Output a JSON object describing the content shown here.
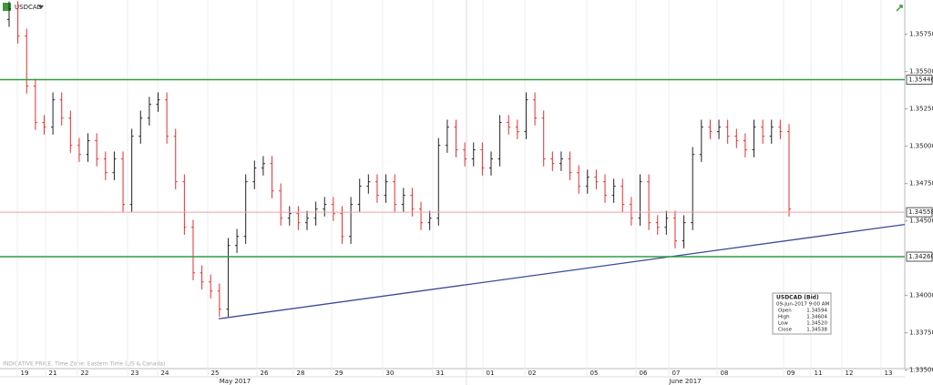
{
  "chart_data": {
    "type": "ohlc",
    "title": "USDCAD",
    "footnote": "INDICATIVE PRICE. Time Zone: Eastern Time (US & Canada)",
    "up_color": "#222222",
    "down_color": "#e03030",
    "ylim": [
      1.3351,
      1.3598
    ],
    "yticks": [
      {
        "value": 1.3575,
        "label": "1.35750"
      },
      {
        "value": 1.355,
        "label": "1.35500"
      },
      {
        "value": 1.3525,
        "label": "1.35250"
      },
      {
        "value": 1.35,
        "label": "1.35000"
      },
      {
        "value": 1.3475,
        "label": "1.34750"
      },
      {
        "value": 1.345,
        "label": "1.34500"
      },
      {
        "value": 1.34,
        "label": "1.34000"
      },
      {
        "value": 1.3375,
        "label": "1.33750"
      },
      {
        "value": 1.335,
        "label": "1.33500"
      }
    ],
    "x_tick_labels": [
      "19",
      "21",
      "22",
      "23",
      "24",
      "25",
      "26",
      "28",
      "29",
      "30",
      "31",
      "01",
      "02",
      "05",
      "06",
      "07",
      "08",
      "09",
      "11",
      "12",
      "13"
    ],
    "months": [
      "May 2017",
      "June 2017"
    ],
    "levels": [
      {
        "value": 1.35446,
        "label": "1.35446",
        "color": "#2e9e3e"
      },
      {
        "value": 1.34558,
        "label": "1.34558",
        "color": "#f0a0a0"
      },
      {
        "value": 1.3426,
        "label": "1.34260",
        "color": "#2e9e3e"
      }
    ],
    "trendline": {
      "color": "#3a4a9a",
      "values": [
        1.33844,
        1.34476
      ]
    },
    "open": [
      1.3585,
      1.35921,
      1.35738,
      1.35403,
      1.35159,
      1.35128,
      1.35311,
      1.35189,
      1.35006,
      1.34945,
      1.35037,
      1.34915,
      1.34823,
      1.34915,
      1.3461,
      1.35067,
      1.35189,
      1.35281,
      1.35311,
      1.35067,
      1.34762,
      1.34457,
      1.34152,
      1.34091,
      1.3403,
      1.33908,
      1.34335,
      1.34396,
      1.34762,
      1.34854,
      1.34884,
      1.34701,
      1.34518,
      1.34549,
      1.34488,
      1.34518,
      1.34579,
      1.3461,
      1.34549,
      1.34396,
      1.3461,
      1.34732,
      1.34762,
      1.34671,
      1.34762,
      1.3461,
      1.34671,
      1.34579,
      1.34488,
      1.34518,
      1.35006,
      1.35128,
      1.34976,
      1.34915,
      1.34976,
      1.34854,
      1.34915,
      1.35159,
      1.35128,
      1.35098,
      1.35311,
      1.35189,
      1.34915,
      1.34884,
      1.34915,
      1.34823,
      1.34732,
      1.34793,
      1.34762,
      1.34671,
      1.34732,
      1.3461,
      1.34518,
      1.34762,
      1.34488,
      1.34457,
      1.34518,
      1.34366,
      1.34488,
      1.34945,
      1.35128,
      1.35098,
      1.35128,
      1.35067,
      1.35037,
      1.34976,
      1.35128,
      1.35067,
      1.35128,
      1.35098
    ],
    "high": [
      1.35971,
      1.35971,
      1.35788,
      1.35453,
      1.35209,
      1.35361,
      1.35361,
      1.35239,
      1.35056,
      1.35087,
      1.35087,
      1.34965,
      1.34965,
      1.34965,
      1.35117,
      1.35239,
      1.35331,
      1.35361,
      1.35361,
      1.35117,
      1.34812,
      1.34507,
      1.34202,
      1.34141,
      1.3408,
      1.34385,
      1.34446,
      1.34812,
      1.34904,
      1.34934,
      1.34934,
      1.34751,
      1.34599,
      1.34599,
      1.34568,
      1.34629,
      1.3466,
      1.3466,
      1.34599,
      1.3466,
      1.34782,
      1.34812,
      1.34812,
      1.34812,
      1.34812,
      1.34721,
      1.34721,
      1.34629,
      1.34568,
      1.35056,
      1.35178,
      1.35178,
      1.35026,
      1.35026,
      1.35026,
      1.34965,
      1.35209,
      1.35209,
      1.35178,
      1.35361,
      1.35361,
      1.35239,
      1.34965,
      1.34965,
      1.34965,
      1.34873,
      1.34843,
      1.34843,
      1.34812,
      1.34782,
      1.34782,
      1.3466,
      1.34812,
      1.34812,
      1.34538,
      1.34568,
      1.34568,
      1.34538,
      1.34995,
      1.35178,
      1.35178,
      1.35178,
      1.35178,
      1.35117,
      1.35087,
      1.35178,
      1.35178,
      1.35178,
      1.35178,
      1.35148
    ],
    "low": [
      1.358,
      1.35688,
      1.35353,
      1.35109,
      1.35078,
      1.35078,
      1.35139,
      1.34956,
      1.34895,
      1.34895,
      1.34865,
      1.34773,
      1.34773,
      1.3456,
      1.3456,
      1.35017,
      1.35139,
      1.35231,
      1.35017,
      1.34712,
      1.34407,
      1.34102,
      1.34041,
      1.3398,
      1.33858,
      1.33858,
      1.34285,
      1.34346,
      1.34712,
      1.34804,
      1.34651,
      1.34468,
      1.34468,
      1.34438,
      1.34438,
      1.34468,
      1.34529,
      1.34499,
      1.34346,
      1.34346,
      1.3456,
      1.34682,
      1.34621,
      1.34621,
      1.3456,
      1.3456,
      1.34529,
      1.34438,
      1.34438,
      1.34468,
      1.34956,
      1.34926,
      1.34865,
      1.34865,
      1.34804,
      1.34804,
      1.34865,
      1.35078,
      1.35048,
      1.35048,
      1.35139,
      1.34865,
      1.34834,
      1.34834,
      1.34773,
      1.34682,
      1.34682,
      1.34712,
      1.34621,
      1.34621,
      1.3456,
      1.34468,
      1.34468,
      1.34438,
      1.34407,
      1.34407,
      1.34316,
      1.34316,
      1.34438,
      1.34895,
      1.35048,
      1.35048,
      1.35017,
      1.34987,
      1.34926,
      1.34926,
      1.35017,
      1.35017,
      1.35048,
      1.34529
    ],
    "close": [
      1.35921,
      1.35738,
      1.35403,
      1.35159,
      1.35128,
      1.35311,
      1.35189,
      1.35006,
      1.34945,
      1.35037,
      1.34915,
      1.34823,
      1.34915,
      1.3461,
      1.35067,
      1.35189,
      1.35281,
      1.35311,
      1.35067,
      1.34762,
      1.34457,
      1.34152,
      1.34091,
      1.3403,
      1.33908,
      1.34335,
      1.34396,
      1.34762,
      1.34854,
      1.34884,
      1.34701,
      1.34518,
      1.34549,
      1.34488,
      1.34518,
      1.34579,
      1.3461,
      1.34549,
      1.34396,
      1.3461,
      1.34732,
      1.34762,
      1.34671,
      1.34762,
      1.3461,
      1.34671,
      1.34579,
      1.34488,
      1.34518,
      1.35006,
      1.35128,
      1.34976,
      1.34915,
      1.34976,
      1.34854,
      1.34915,
      1.35159,
      1.35128,
      1.35098,
      1.35311,
      1.35189,
      1.34915,
      1.34884,
      1.34915,
      1.34823,
      1.34732,
      1.34793,
      1.34762,
      1.34671,
      1.34732,
      1.3461,
      1.34518,
      1.34762,
      1.34488,
      1.34457,
      1.34518,
      1.34366,
      1.34488,
      1.34945,
      1.35128,
      1.35098,
      1.35128,
      1.35067,
      1.35037,
      1.34976,
      1.35128,
      1.35067,
      1.35128,
      1.35098,
      1.34579
    ],
    "info": {
      "title": "USDCAD (Bid)",
      "time": "09-Jun-2017 9:00 AM",
      "rows": [
        [
          "Open",
          "1.34594"
        ],
        [
          "High",
          "1.34604"
        ],
        [
          "Low",
          "1.34520"
        ],
        [
          "Close",
          "1.34538"
        ]
      ]
    }
  }
}
